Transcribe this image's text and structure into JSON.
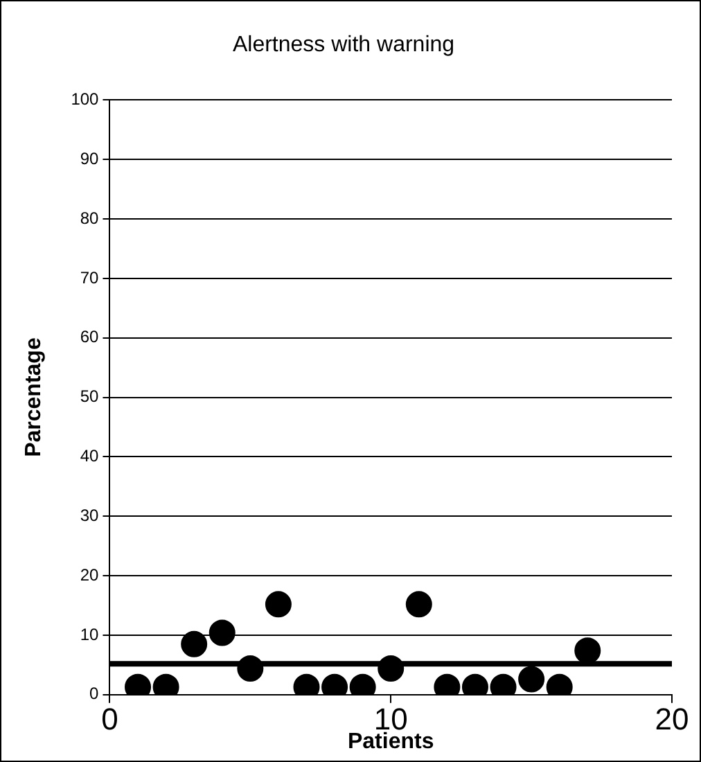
{
  "chart_data": {
    "type": "scatter",
    "title": "Alertness with warning",
    "xlabel": "Patients",
    "ylabel": "Parcentage",
    "x": [
      1,
      2,
      3,
      4,
      5,
      6,
      7,
      8,
      9,
      10,
      11,
      12,
      13,
      14,
      15,
      16,
      17
    ],
    "values": [
      1.3,
      1.3,
      8.5,
      10.4,
      4.4,
      15.2,
      1.3,
      1.3,
      1.3,
      4.4,
      15.2,
      1.3,
      1.3,
      1.3,
      2.6,
      1.3,
      7.4
    ],
    "color": "#000000",
    "marker": "circle",
    "xlim": [
      0,
      20
    ],
    "xticks": [
      0,
      10,
      20
    ],
    "ylim": [
      0,
      100
    ],
    "yticks": [
      0,
      10,
      20,
      30,
      40,
      50,
      60,
      70,
      80,
      90,
      100
    ],
    "grid": "y",
    "legend": false,
    "ref_lines": [
      {
        "axis": "y",
        "value": 5.2,
        "color": "#000000"
      }
    ]
  }
}
